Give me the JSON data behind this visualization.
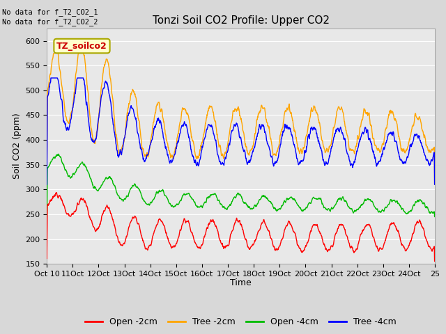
{
  "title": "Tonzi Soil CO2 Profile: Upper CO2",
  "ylabel": "Soil CO2 (ppm)",
  "xlabel": "Time",
  "no_data_lines": [
    "No data for f_T2_CO2_1",
    "No data for f_T2_CO2_2"
  ],
  "box_label": "TZ_soilco2",
  "ylim": [
    150,
    625
  ],
  "yticks": [
    150,
    200,
    250,
    300,
    350,
    400,
    450,
    500,
    550,
    600
  ],
  "xlim_days": 15,
  "n_days": 15,
  "pts_per_day": 96,
  "colors": {
    "open_2cm": "#ff0000",
    "tree_2cm": "#ffa500",
    "open_4cm": "#00bb00",
    "tree_4cm": "#0000ff"
  },
  "legend_labels": [
    "Open -2cm",
    "Tree -2cm",
    "Open -4cm",
    "Tree -4cm"
  ],
  "fig_bg": "#d8d8d8",
  "plot_bg": "#e8e8e8",
  "grid_color": "#ffffff",
  "title_fontsize": 11,
  "label_fontsize": 9,
  "tick_fontsize": 8,
  "legend_fontsize": 9,
  "linewidth": 1.0
}
